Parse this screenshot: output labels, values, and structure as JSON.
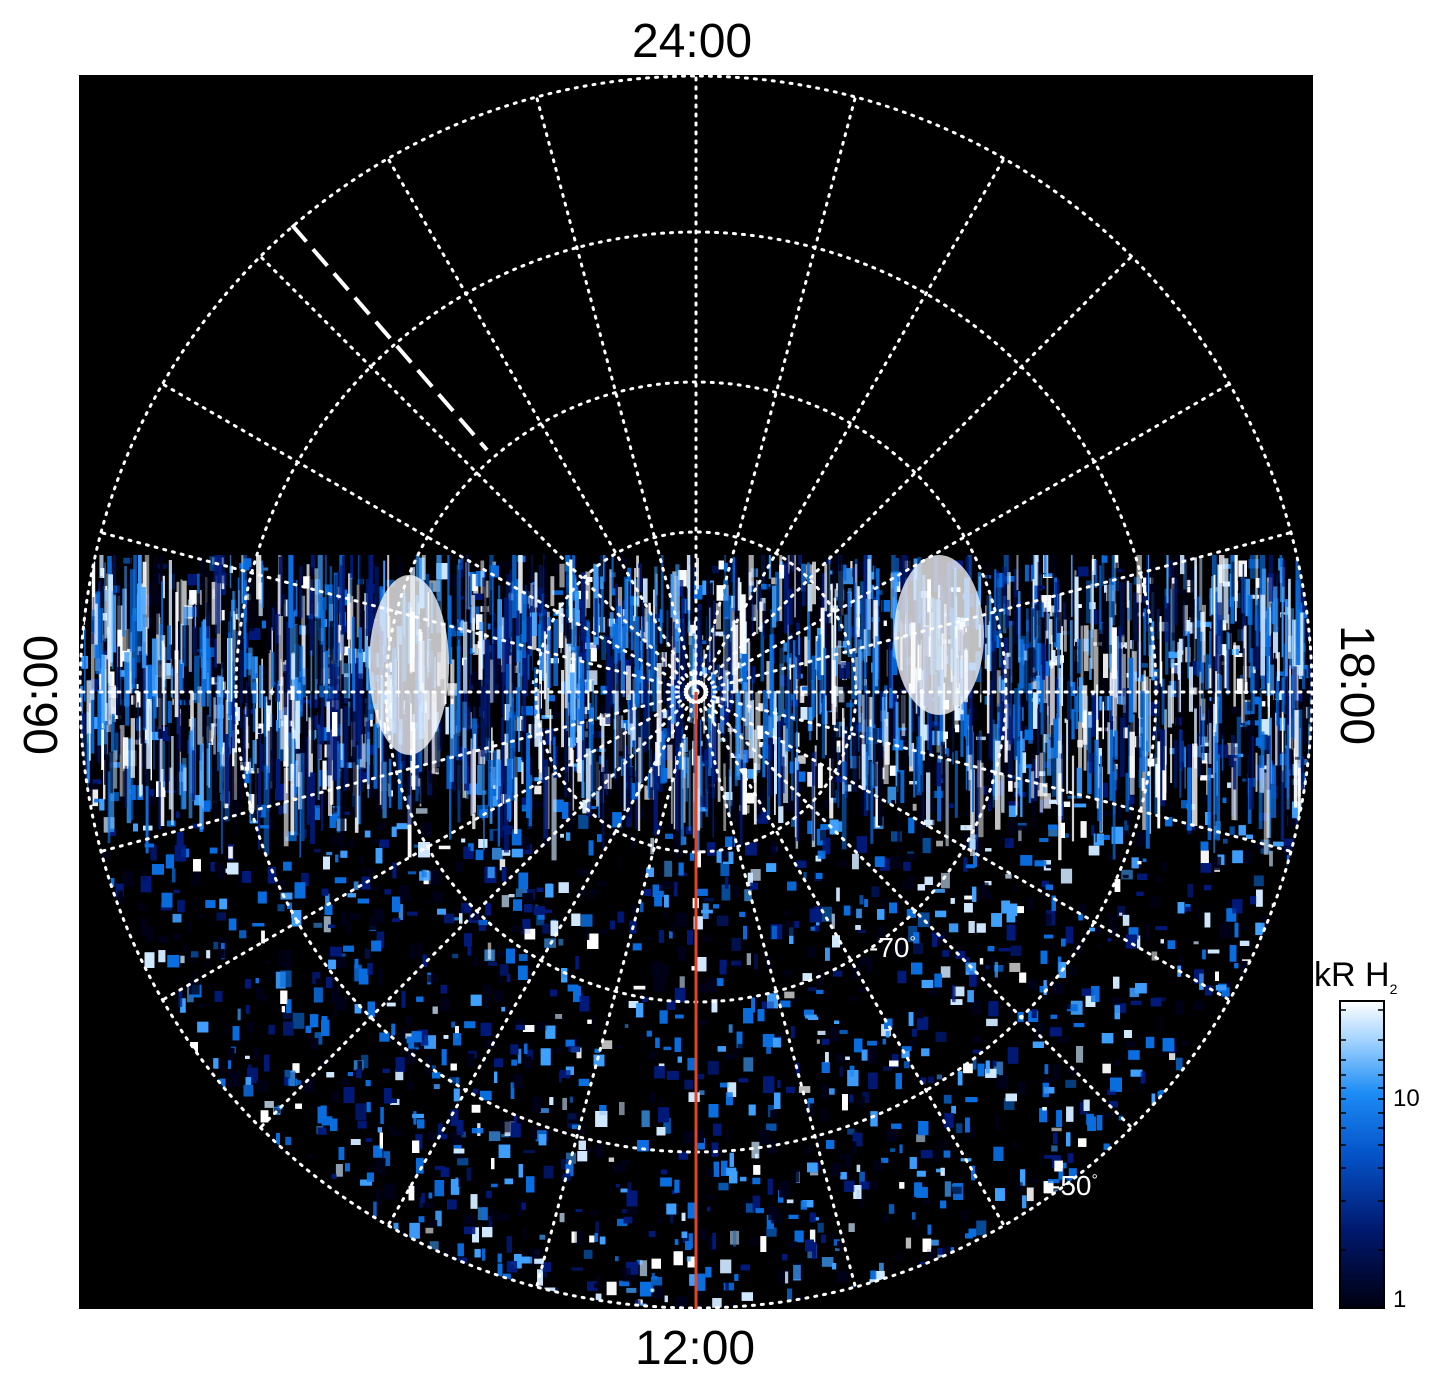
{
  "labels": {
    "top": "24:00",
    "bottom": "12:00",
    "left": "06:00",
    "right": "18:00"
  },
  "latitude_labels": [
    "-70",
    "-50"
  ],
  "degree_symbol": "°",
  "colorbar": {
    "title_main": "kR H",
    "title_sub": "2",
    "ticks": [
      "10",
      "1"
    ],
    "colors": [
      "#000018",
      "#001a7a",
      "#0a6ee0",
      "#3fa0ff",
      "#cfe8ff",
      "#ffffff"
    ]
  },
  "colors": {
    "background": "#000000",
    "grid": "#ffffff",
    "meridian_line": "#e0452a"
  }
}
